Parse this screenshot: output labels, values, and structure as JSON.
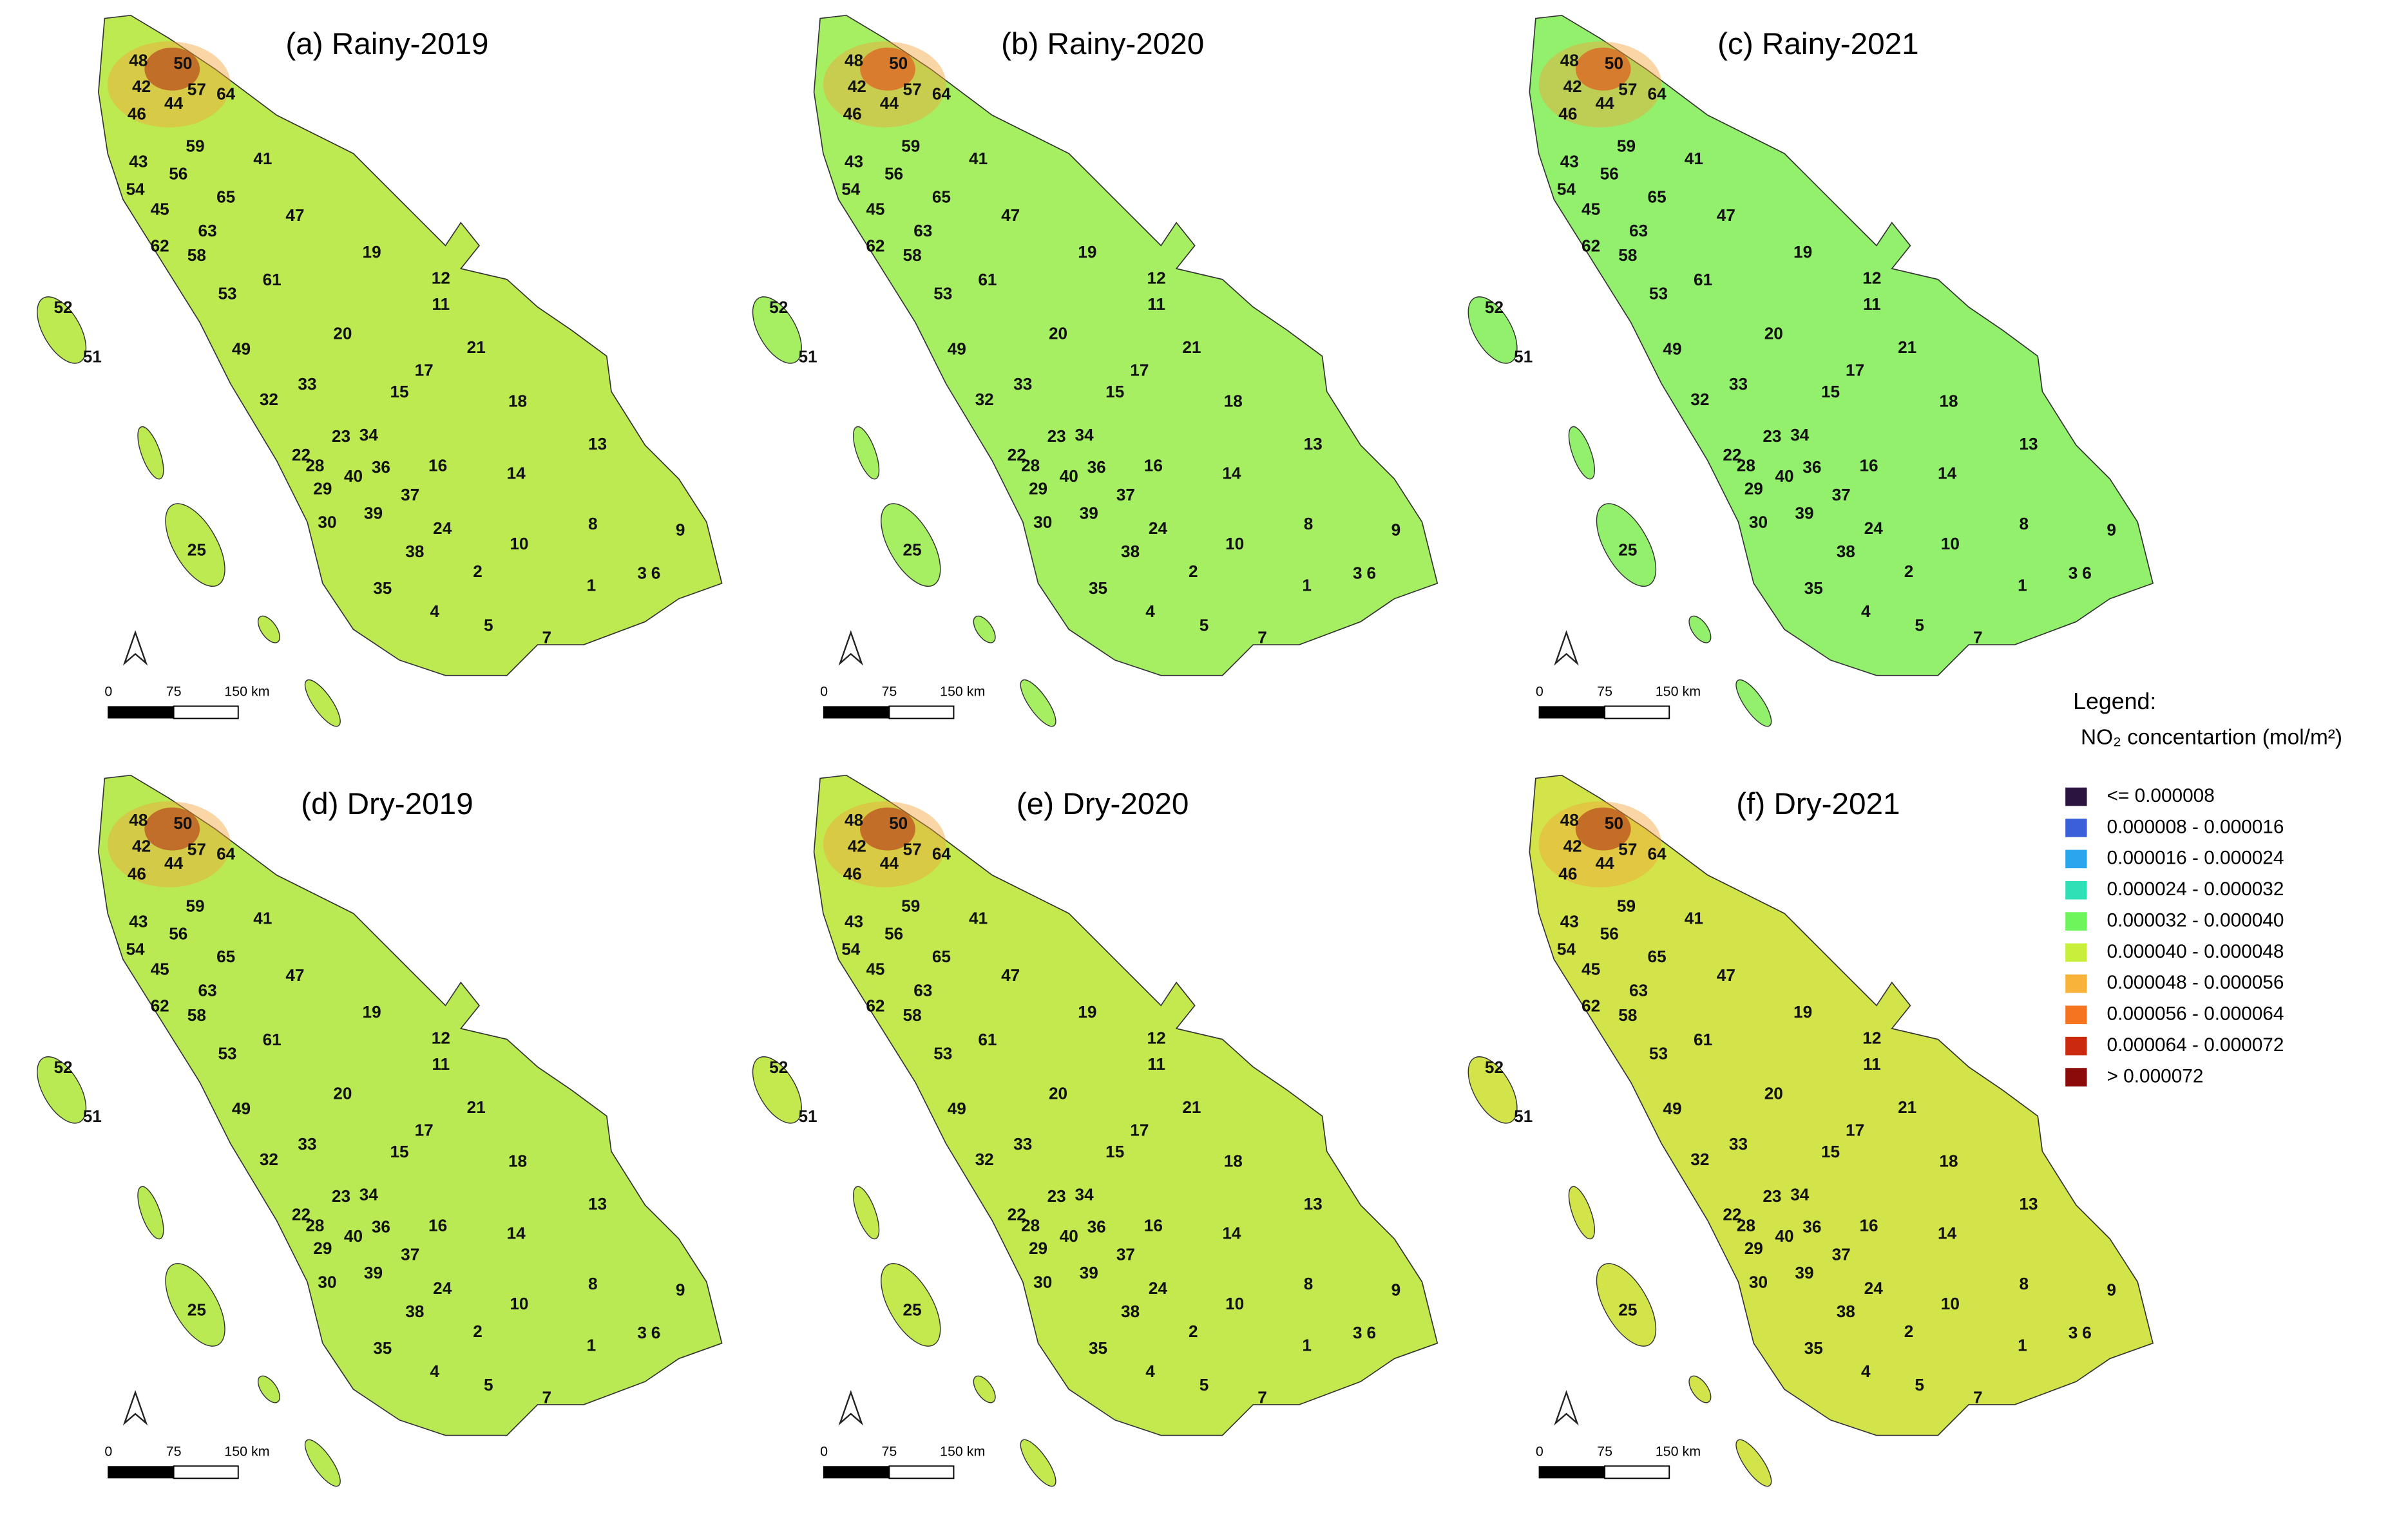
{
  "panels": [
    {
      "title": "(a) Rainy-2019",
      "fill": "#bde951",
      "hotspot": "#8b0a0a"
    },
    {
      "title": "(b) Rainy-2020",
      "fill": "#a6ee62",
      "hotspot": "#cc2a0f"
    },
    {
      "title": "(c) Rainy-2021",
      "fill": "#92f06c",
      "hotspot": "#cc2a0f"
    },
    {
      "title": "(d) Dry-2019",
      "fill": "#b9ea53",
      "hotspot": "#8b0a0a"
    },
    {
      "title": "(e) Dry-2020",
      "fill": "#c3e94f",
      "hotspot": "#8b0a0a"
    },
    {
      "title": "(f) Dry-2021",
      "fill": "#d3e34a",
      "hotspot": "#8b0a0a"
    }
  ],
  "region_ids": [
    "48",
    "50",
    "42",
    "57",
    "64",
    "44",
    "46",
    "59",
    "41",
    "43",
    "56",
    "54",
    "65",
    "45",
    "63",
    "47",
    "62",
    "58",
    "19",
    "12",
    "61",
    "53",
    "11",
    "52",
    "20",
    "21",
    "51",
    "49",
    "17",
    "33",
    "15",
    "18",
    "32",
    "13",
    "22",
    "23",
    "34",
    "28",
    "36",
    "16",
    "14",
    "40",
    "29",
    "37",
    "30",
    "39",
    "24",
    "38",
    "10",
    "8",
    "9",
    "2",
    "3",
    "6",
    "35",
    "1",
    "25",
    "4",
    "5",
    "7"
  ],
  "scale_bar": [
    "0",
    "75",
    "150 km"
  ],
  "legend": {
    "title": "Legend:",
    "subtitle": "NO₂ concentartion (mol/m²)",
    "items": [
      {
        "label": "<= 0.000008",
        "color": "#2b1540"
      },
      {
        "label": "0.000008 - 0.000016",
        "color": "#3a5fd9"
      },
      {
        "label": "0.000016 - 0.000024",
        "color": "#2aa6ee"
      },
      {
        "label": "0.000024 - 0.000032",
        "color": "#2ee0b5"
      },
      {
        "label": "0.000032 - 0.000040",
        "color": "#6ef55c"
      },
      {
        "label": "0.000040 - 0.000048",
        "color": "#c8ef3c"
      },
      {
        "label": "0.000048 - 0.000056",
        "color": "#f7b33a"
      },
      {
        "label": "0.000056 - 0.000064",
        "color": "#f4741f"
      },
      {
        "label": "0.000064 - 0.000072",
        "color": "#cc2a0f"
      },
      {
        "label": "> 0.000072",
        "color": "#8b0a0a"
      }
    ]
  }
}
